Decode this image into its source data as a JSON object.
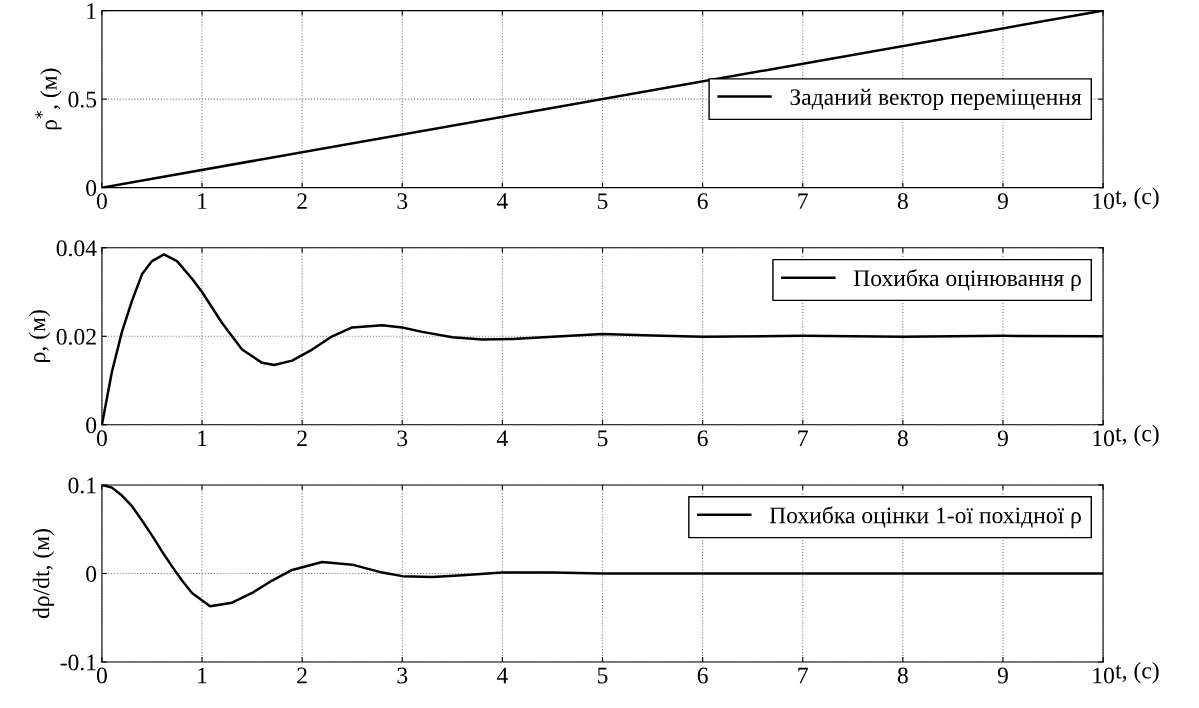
{
  "chart_data": [
    {
      "type": "line",
      "xlabel": "t, (с)",
      "ylabel": "ρ$^{*}$, (м)",
      "xlim": [
        0,
        10
      ],
      "xticks": [
        0,
        1,
        2,
        3,
        4,
        5,
        6,
        7,
        8,
        9,
        10
      ],
      "ylim": [
        0,
        1
      ],
      "yticks": [
        0,
        0.5,
        1
      ],
      "grid": true,
      "legend": "right",
      "x": [
        0,
        10
      ],
      "series": [
        {
          "name": "Заданий вектор переміщення",
          "color": "#000000",
          "values": [
            0,
            1
          ]
        }
      ]
    },
    {
      "type": "line",
      "xlabel": "t, (с)",
      "ylabel": "ρ, (м)",
      "xlim": [
        0,
        10
      ],
      "xticks": [
        0,
        1,
        2,
        3,
        4,
        5,
        6,
        7,
        8,
        9,
        10
      ],
      "ylim": [
        0,
        0.04
      ],
      "yticks": [
        0,
        0.02,
        0.04
      ],
      "grid": true,
      "legend": "top right",
      "x": [
        0,
        0.05,
        0.1,
        0.2,
        0.3,
        0.4,
        0.5,
        0.62,
        0.75,
        0.9,
        1.0,
        1.2,
        1.4,
        1.6,
        1.72,
        1.9,
        2.1,
        2.3,
        2.5,
        2.8,
        3.0,
        3.2,
        3.5,
        3.8,
        4.1,
        4.5,
        5.0,
        5.5,
        6,
        7,
        8,
        9,
        10
      ],
      "series": [
        {
          "name": "Похибка оцінювання ρ",
          "color": "#000000",
          "values": [
            0,
            0.006,
            0.012,
            0.021,
            0.028,
            0.034,
            0.037,
            0.0385,
            0.037,
            0.033,
            0.03,
            0.023,
            0.017,
            0.014,
            0.0135,
            0.0145,
            0.017,
            0.02,
            0.022,
            0.0225,
            0.022,
            0.021,
            0.0198,
            0.0193,
            0.0194,
            0.0199,
            0.0205,
            0.0202,
            0.0199,
            0.0201,
            0.0199,
            0.0201,
            0.02
          ]
        }
      ]
    },
    {
      "type": "line",
      "xlabel": "t, (с)",
      "ylabel": "dρ/dt, (м)",
      "xlim": [
        0,
        10
      ],
      "xticks": [
        0,
        1,
        2,
        3,
        4,
        5,
        6,
        7,
        8,
        9,
        10
      ],
      "ylim": [
        -0.1,
        0.1
      ],
      "yticks": [
        -0.1,
        0,
        0.1
      ],
      "grid": true,
      "legend": "top right",
      "x": [
        0,
        0.1,
        0.2,
        0.3,
        0.4,
        0.5,
        0.6,
        0.7,
        0.8,
        0.9,
        1.08,
        1.3,
        1.5,
        1.7,
        1.9,
        2.2,
        2.5,
        2.8,
        3.0,
        3.3,
        3.6,
        4.0,
        4.5,
        5,
        6,
        7,
        8,
        9,
        10
      ],
      "series": [
        {
          "name": "Похибка оцінки 1-ої похідної ρ",
          "color": "#000000",
          "values": [
            0.1,
            0.097,
            0.088,
            0.076,
            0.06,
            0.043,
            0.025,
            0.008,
            -0.008,
            -0.022,
            -0.037,
            -0.033,
            -0.022,
            -0.008,
            0.004,
            0.013,
            0.01,
            0.001,
            -0.003,
            -0.004,
            -0.002,
            0.001,
            0.001,
            0,
            0,
            0,
            0,
            0,
            0
          ]
        }
      ]
    }
  ]
}
